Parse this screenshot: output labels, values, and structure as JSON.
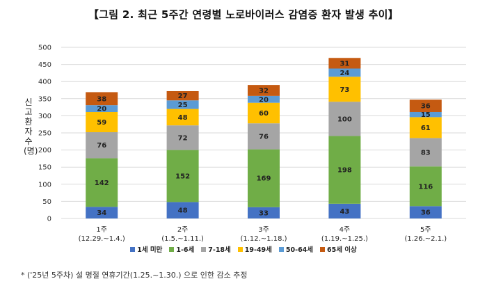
{
  "title": "【그림 2. 최근 5주간 연령별 노로바이러스 감염증 환자 발생 추이】",
  "footnote": "*  ('25년 5주차) 설 명절 연휴기간(1.25.~1.30.) 으로 인한 감소 추정",
  "chart_data": {
    "type": "bar",
    "stacked": true,
    "title": "【그림 2. 최근 5주간 연령별 노로바이러스 감염증 환자 발생 추이】",
    "ylabel": "신고환자 수(명)",
    "xlabel": "",
    "ylim": [
      0,
      500
    ],
    "yticks": [
      0,
      50,
      100,
      150,
      200,
      250,
      300,
      350,
      400,
      450,
      500
    ],
    "grid": true,
    "legend_position": "bottom",
    "categories": [
      {
        "week": "1주",
        "dates": "(12.29.~1.4.)"
      },
      {
        "week": "2주",
        "dates": "(1.5.~1.11.)"
      },
      {
        "week": "3주",
        "dates": "(1.12.~1.18.)"
      },
      {
        "week": "4주",
        "dates": "(1.19.~1.25.)"
      },
      {
        "week": "5주",
        "dates": "(1.26.~2.1.)"
      }
    ],
    "series": [
      {
        "name": "1세 미만",
        "color": "#4472C4",
        "values": [
          34,
          48,
          33,
          43,
          36
        ]
      },
      {
        "name": "1-6세",
        "color": "#70AD47",
        "values": [
          142,
          152,
          169,
          198,
          116
        ]
      },
      {
        "name": "7-18세",
        "color": "#A5A5A5",
        "values": [
          76,
          72,
          76,
          100,
          83
        ]
      },
      {
        "name": "19-49세",
        "color": "#FFC000",
        "values": [
          59,
          48,
          60,
          73,
          61
        ]
      },
      {
        "name": "50-64세",
        "color": "#5B9BD5",
        "values": [
          20,
          25,
          20,
          24,
          15
        ]
      },
      {
        "name": "65세 이상",
        "color": "#C55A11",
        "values": [
          38,
          27,
          32,
          31,
          36
        ]
      }
    ]
  }
}
